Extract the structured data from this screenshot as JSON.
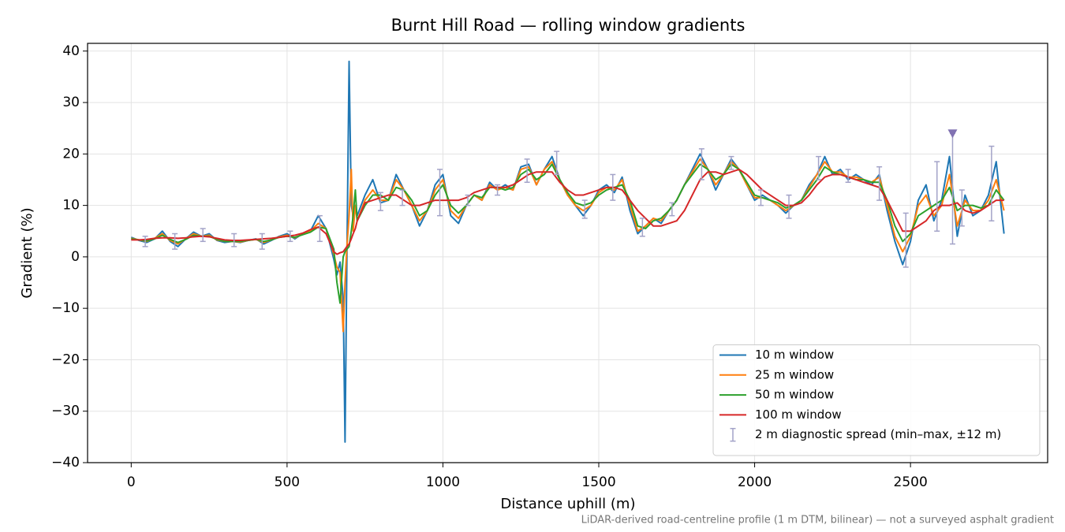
{
  "chart_data": {
    "type": "line",
    "title": "Burnt Hill Road — rolling window gradients",
    "xlabel": "Distance uphill (m)",
    "ylabel": "Gradient (%)",
    "footnote": "LiDAR-derived road-centreline profile (1 m DTM, bilinear) — not a surveyed asphalt gradient",
    "xlim": [
      -140,
      2940
    ],
    "ylim": [
      -40,
      41.5
    ],
    "xticks": [
      0,
      500,
      1000,
      1500,
      2000,
      2500
    ],
    "yticks": [
      {
        "value": -40,
        "label": "−40"
      },
      {
        "value": -30,
        "label": "−30"
      },
      {
        "value": -20,
        "label": "−20"
      },
      {
        "value": -10,
        "label": "−10"
      },
      0,
      10,
      20,
      30,
      40
    ],
    "grid": true,
    "legend": "lower right",
    "x": [
      0,
      25,
      50,
      75,
      100,
      125,
      150,
      175,
      200,
      225,
      250,
      275,
      300,
      325,
      350,
      375,
      400,
      425,
      450,
      475,
      500,
      525,
      550,
      575,
      600,
      625,
      650,
      660,
      670,
      680,
      686,
      692,
      699,
      706,
      712,
      719,
      725,
      750,
      775,
      800,
      825,
      850,
      875,
      900,
      925,
      950,
      975,
      1000,
      1025,
      1050,
      1075,
      1100,
      1125,
      1150,
      1175,
      1200,
      1225,
      1250,
      1275,
      1300,
      1325,
      1350,
      1375,
      1400,
      1425,
      1450,
      1475,
      1500,
      1525,
      1550,
      1575,
      1600,
      1625,
      1650,
      1675,
      1700,
      1725,
      1750,
      1775,
      1800,
      1825,
      1850,
      1875,
      1900,
      1925,
      1950,
      1975,
      2000,
      2025,
      2050,
      2075,
      2100,
      2125,
      2150,
      2175,
      2200,
      2225,
      2250,
      2275,
      2300,
      2325,
      2350,
      2375,
      2400,
      2425,
      2450,
      2475,
      2500,
      2525,
      2550,
      2575,
      2600,
      2625,
      2650,
      2675,
      2700,
      2725,
      2750,
      2775,
      2800
    ],
    "series": [
      {
        "name": "10 m window",
        "color": "#1f77b4",
        "values": [
          3.8,
          3.2,
          2.8,
          3.5,
          5.0,
          3.0,
          2.0,
          3.5,
          4.8,
          4.0,
          4.5,
          3.2,
          2.8,
          3.0,
          2.8,
          3.2,
          3.5,
          2.5,
          3.2,
          4.0,
          4.5,
          3.5,
          4.5,
          5.0,
          8.0,
          5.5,
          -0.5,
          -3.5,
          -1,
          -8,
          -36,
          0,
          38,
          10,
          8,
          10,
          8,
          12,
          15,
          10.5,
          11,
          16,
          13,
          10,
          6,
          9,
          14,
          16,
          8,
          6.5,
          10,
          12,
          11,
          14.5,
          13,
          14,
          13,
          17.5,
          18,
          14,
          17,
          19.5,
          15,
          12,
          10,
          8,
          10,
          13,
          14,
          12.5,
          15.5,
          9,
          4.5,
          6,
          7.5,
          6.5,
          9,
          11,
          14,
          17,
          20,
          17,
          13,
          16,
          19,
          17,
          14,
          11,
          12,
          11,
          10,
          8.5,
          10,
          11,
          14,
          16,
          19.5,
          16,
          17,
          15,
          16,
          15,
          14,
          16,
          9,
          3,
          -1.5,
          3,
          11,
          14,
          7,
          11,
          19.5,
          4,
          12,
          8,
          9,
          12,
          18.5,
          4.5
        ]
      },
      {
        "name": "25 m window",
        "color": "#ff7f0e",
        "values": [
          3.6,
          3.3,
          3.0,
          3.6,
          4.5,
          3.2,
          2.5,
          3.5,
          4.5,
          4.0,
          4.2,
          3.3,
          3.0,
          3.0,
          2.9,
          3.2,
          3.4,
          2.8,
          3.3,
          3.9,
          4.2,
          3.7,
          4.4,
          5.0,
          6.5,
          5.5,
          0.5,
          -2,
          -3,
          -14.5,
          -5,
          2,
          8,
          17,
          5,
          10,
          7,
          11,
          13,
          11,
          11,
          15,
          13,
          10,
          7,
          9,
          13,
          15,
          9,
          7.5,
          10,
          12,
          11,
          14,
          13,
          13.5,
          13,
          17,
          17.5,
          14,
          17,
          18.5,
          15,
          12,
          10,
          9,
          10,
          12.5,
          13.5,
          13,
          15,
          10,
          5,
          6,
          7.5,
          7,
          9,
          11,
          14,
          16.5,
          19,
          17,
          14,
          16,
          18.5,
          17,
          14,
          11.5,
          11.5,
          11,
          10,
          9,
          10,
          11,
          13.5,
          16,
          18.5,
          16.5,
          16.5,
          15.5,
          15.5,
          15,
          14.5,
          15.5,
          10,
          4,
          1,
          4,
          10,
          12,
          8,
          10,
          16,
          6,
          11,
          9,
          9,
          11,
          15,
          9
        ]
      },
      {
        "name": "50 m window",
        "color": "#2ca02c",
        "values": [
          3.5,
          3.3,
          3.1,
          3.5,
          4.2,
          3.4,
          2.8,
          3.4,
          4.2,
          4.0,
          4.0,
          3.4,
          3.0,
          3.0,
          3.0,
          3.2,
          3.4,
          3.0,
          3.3,
          3.8,
          4.0,
          3.8,
          4.3,
          4.8,
          5.8,
          5.5,
          1.5,
          -5,
          -9,
          0,
          1,
          1.5,
          2,
          5,
          8,
          13,
          7,
          10,
          12,
          12,
          11,
          13.5,
          13,
          11,
          8,
          9,
          12,
          14,
          10,
          8.5,
          10,
          12,
          11.5,
          13.5,
          13.5,
          13,
          13.5,
          16,
          17,
          15,
          16,
          18,
          15,
          12.5,
          10.5,
          10,
          10.5,
          12,
          13,
          13.5,
          14,
          11,
          6,
          5.5,
          7,
          7.5,
          9,
          11,
          14,
          16,
          18,
          17,
          15,
          16,
          18,
          17,
          14.5,
          12,
          11.5,
          11,
          10.5,
          9.5,
          10,
          11,
          13,
          15,
          17.5,
          16.5,
          16,
          15.5,
          15,
          15,
          14.5,
          14.5,
          11,
          6,
          3,
          4.5,
          8,
          9,
          10,
          11,
          13.5,
          9,
          10,
          10,
          9.5,
          10,
          13,
          11
        ]
      },
      {
        "name": "100 m window",
        "color": "#d62728",
        "values": [
          3.3,
          3.3,
          3.4,
          3.6,
          3.7,
          3.7,
          3.6,
          3.7,
          3.9,
          4.0,
          3.9,
          3.6,
          3.3,
          3.2,
          3.2,
          3.3,
          3.4,
          3.5,
          3.6,
          3.8,
          4.0,
          4.2,
          4.6,
          5.3,
          5.8,
          4.5,
          1.0,
          0.5,
          0.8,
          1,
          1.5,
          2,
          2.5,
          3.5,
          4.5,
          5.5,
          7,
          10.5,
          11,
          11.5,
          12,
          12,
          11,
          10,
          10,
          10.5,
          11,
          11,
          11,
          11,
          11.5,
          12.5,
          13,
          13.5,
          13.5,
          13.5,
          14,
          15,
          16,
          16.5,
          16.5,
          16.5,
          14.5,
          13,
          12,
          12,
          12.5,
          13,
          13.5,
          13.5,
          13,
          11,
          9,
          7.5,
          6,
          6,
          6.5,
          7,
          9,
          12,
          15,
          16.5,
          16.5,
          16,
          16.5,
          17,
          16,
          14.5,
          13,
          12,
          11,
          10,
          10,
          10.5,
          12,
          14,
          15.5,
          16,
          16,
          15.5,
          15,
          14.5,
          14,
          13.5,
          11,
          8,
          5,
          5,
          6,
          7,
          9,
          10,
          10,
          10.5,
          9,
          8.5,
          9,
          10,
          11,
          11
        ]
      }
    ],
    "errorbars": {
      "name": "2 m diagnostic spread (min–max, ±12 m)",
      "color": "#a3a3c8",
      "x": [
        45,
        140,
        230,
        330,
        420,
        510,
        605,
        800,
        870,
        990,
        1080,
        1175,
        1270,
        1365,
        1455,
        1545,
        1640,
        1735,
        1830,
        1925,
        2020,
        2110,
        2205,
        2300,
        2400,
        2485,
        2585,
        2635,
        2665,
        2760
      ],
      "low": [
        2,
        1.5,
        3,
        2,
        1.5,
        3,
        3,
        9,
        10,
        8,
        10,
        12,
        14.5,
        16,
        7.5,
        11,
        4,
        8,
        15,
        17,
        10,
        7.5,
        15,
        14.5,
        11,
        -2,
        5,
        2.5,
        6,
        7
      ],
      "high": [
        4,
        4.5,
        5.5,
        4.5,
        4.5,
        5,
        8,
        12.5,
        13,
        17,
        12,
        14,
        19,
        20.5,
        11,
        16,
        7.5,
        10.5,
        21,
        19.5,
        13,
        12,
        19.5,
        17,
        17.5,
        8.5,
        18.5,
        24,
        13,
        21.5
      ]
    },
    "marker": {
      "x": 2635,
      "y": 24,
      "color": "#8172b2"
    }
  }
}
